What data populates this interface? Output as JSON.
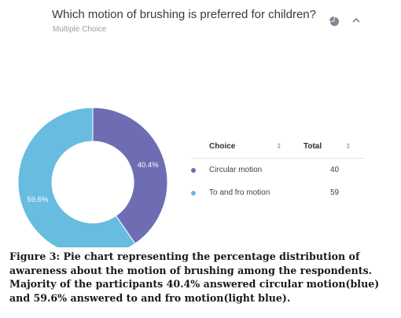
{
  "question": {
    "title": "Which motion of brushing is preferred for children?",
    "subtitle": "Multiple Choice",
    "icons": [
      "pie-chart-icon",
      "chevron-up-icon"
    ]
  },
  "chart_data": {
    "type": "pie",
    "style": "donut",
    "categories": [
      "Circular motion",
      "To and fro motion"
    ],
    "values": [
      40,
      59
    ],
    "percent_labels": [
      "40.4%",
      "59.6%"
    ],
    "colors": [
      "#6e6db4",
      "#67bce0"
    ]
  },
  "table": {
    "headers": {
      "choice": "Choice",
      "total": "Total"
    },
    "sort_glyph": "⇕",
    "rows": [
      {
        "choice": "Circular motion",
        "total": "40",
        "color": "#6e6db4"
      },
      {
        "choice": "To and fro motion",
        "total": "59",
        "color": "#67bce0"
      }
    ]
  },
  "caption": "Figure 3: Pie chart representing the percentage distribution of awareness about the motion of brushing among the respondents. Majority of the participants 40.4% answered circular motion(blue) and 59.6% answered to and fro motion(light blue)."
}
